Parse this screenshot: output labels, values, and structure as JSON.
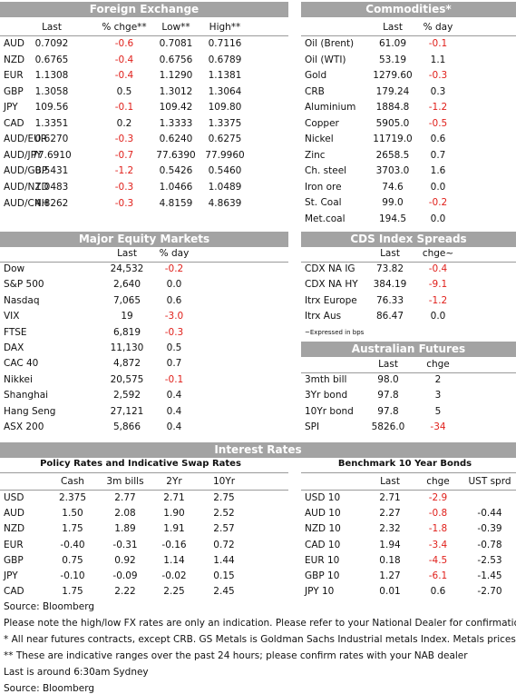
{
  "fx": {
    "title": "Foreign Exchange",
    "columns": [
      "Last",
      "% chge**",
      "Low**",
      "High**"
    ],
    "rows": [
      [
        "AUD",
        "0.7092",
        "-0.6",
        "0.7081",
        "0.7116"
      ],
      [
        "NZD",
        "0.6765",
        "-0.4",
        "0.6756",
        "0.6789"
      ],
      [
        "EUR",
        "1.1308",
        "-0.4",
        "1.1290",
        "1.1381"
      ],
      [
        "GBP",
        "1.3058",
        "0.5",
        "1.3012",
        "1.3064"
      ],
      [
        "JPY",
        "109.56",
        "-0.1",
        "109.42",
        "109.80"
      ],
      [
        "CAD",
        "1.3351",
        "0.2",
        "1.3333",
        "1.3375"
      ],
      [
        "AUD/EUR",
        "0.6270",
        "-0.3",
        "0.6240",
        "0.6275"
      ],
      [
        "AUD/JPY",
        "77.6910",
        "-0.7",
        "77.6390",
        "77.9960"
      ],
      [
        "AUD/GBP",
        "0.5431",
        "-1.2",
        "0.5426",
        "0.5460"
      ],
      [
        "AUD/NZD",
        "1.0483",
        "-0.3",
        "1.0466",
        "1.0489"
      ],
      [
        "AUD/CNH",
        "4.8262",
        "-0.3",
        "4.8159",
        "4.8639"
      ]
    ]
  },
  "commodities": {
    "title": "Commodities*",
    "columns": [
      "Last",
      "% day"
    ],
    "rows": [
      [
        "Oil (Brent)",
        "61.09",
        "-0.1"
      ],
      [
        "Oil (WTI)",
        "53.19",
        "1.1"
      ],
      [
        "Gold",
        "1279.60",
        "-0.3"
      ],
      [
        "CRB",
        "179.24",
        "0.3"
      ],
      [
        "Aluminium",
        "1884.8",
        "-1.2"
      ],
      [
        "Copper",
        "5905.0",
        "-0.5"
      ],
      [
        "Nickel",
        "11719.0",
        "0.6"
      ],
      [
        "Zinc",
        "2658.5",
        "0.7"
      ],
      [
        "Ch. steel",
        "3703.0",
        "1.6"
      ],
      [
        "Iron ore",
        "74.6",
        "0.0"
      ],
      [
        "St. Coal",
        "99.0",
        "-0.2"
      ],
      [
        "Met.coal",
        "194.5",
        "0.0"
      ]
    ]
  },
  "equities": {
    "title": "Major Equity Markets",
    "columns": [
      "Last",
      "% day"
    ],
    "rows": [
      [
        "Dow",
        "24,532",
        "-0.2"
      ],
      [
        "S&P 500",
        "2,640",
        "0.0"
      ],
      [
        "Nasdaq",
        "7,065",
        "0.6"
      ],
      [
        "VIX",
        "19",
        "-3.0"
      ],
      [
        "FTSE",
        "6,819",
        "-0.3"
      ],
      [
        "DAX",
        "11,130",
        "0.5"
      ],
      [
        "CAC 40",
        "4,872",
        "0.7"
      ],
      [
        "Nikkei",
        "20,575",
        "-0.1"
      ],
      [
        "Shanghai",
        "2,592",
        "0.4"
      ],
      [
        "Hang Seng",
        "27,121",
        "0.4"
      ],
      [
        "ASX 200",
        "5,866",
        "0.4"
      ]
    ]
  },
  "cds": {
    "title": "CDS Index Spreads",
    "columns": [
      "Last",
      "chge~"
    ],
    "rows": [
      [
        "CDX NA IG",
        "73.82",
        "-0.4"
      ],
      [
        "CDX NA HY",
        "384.19",
        "-9.1"
      ],
      [
        "Itrx Europe",
        "76.33",
        "-1.2"
      ],
      [
        "Itrx Aus",
        "86.47",
        "0.0"
      ]
    ],
    "note": "~Expressed in bps"
  },
  "futures": {
    "title": "Australian Futures",
    "columns": [
      "Last",
      "chge"
    ],
    "rows": [
      [
        "3mth bill",
        "98.0",
        "2"
      ],
      [
        "3Yr bond",
        "97.8",
        "3"
      ],
      [
        "10Yr bond",
        "97.8",
        "5"
      ],
      [
        "SPI",
        "5826.0",
        "-34"
      ]
    ]
  },
  "interest_rates": {
    "title": "Interest Rates",
    "policy": {
      "title": "Policy Rates and Indicative Swap Rates",
      "columns": [
        "Cash",
        "3m bills",
        "2Yr",
        "10Yr"
      ],
      "rows": [
        [
          "USD",
          "2.375",
          "2.77",
          "2.71",
          "2.75"
        ],
        [
          "AUD",
          "1.50",
          "2.08",
          "1.90",
          "2.52"
        ],
        [
          "NZD",
          "1.75",
          "1.89",
          "1.91",
          "2.57"
        ],
        [
          "EUR",
          "-0.40",
          "-0.31",
          "-0.16",
          "0.72"
        ],
        [
          "GBP",
          "0.75",
          "0.92",
          "1.14",
          "1.44"
        ],
        [
          "JPY",
          "-0.10",
          "-0.09",
          "-0.02",
          "0.15"
        ],
        [
          "CAD",
          "1.75",
          "2.22",
          "2.25",
          "2.45"
        ]
      ]
    },
    "bonds": {
      "title": "Benchmark 10 Year Bonds",
      "columns": [
        "Last",
        "chge",
        "UST sprd"
      ],
      "rows": [
        [
          "USD 10",
          "2.71",
          "-2.9"
        ],
        [
          "AUD 10",
          "2.27",
          "-0.8",
          "-0.44"
        ],
        [
          "NZD 10",
          "2.32",
          "-1.8",
          "-0.39"
        ],
        [
          "CAD 10",
          "1.94",
          "-3.4",
          "-0.78"
        ],
        [
          "EUR 10",
          "0.18",
          "-4.5",
          "-2.53"
        ],
        [
          "GBP 10",
          "1.27",
          "-6.1",
          "-1.45"
        ],
        [
          "JPY 10",
          "0.01",
          "0.6",
          "-2.70"
        ]
      ]
    }
  },
  "footer": [
    "Source: Bloomberg",
    "Please note the high/low FX rates are only an indication. Please refer to your National Dealer for confirmation.",
    "* All near futures contracts, except CRB.  GS Metals is Goldman Sachs Industrial metals Index.  Metals prices are CME.",
    "** These are indicative ranges over the past 24 hours; please confirm rates with your NAB dealer",
    "Last is around 6:30am Sydney",
    "Source: Bloomberg"
  ]
}
